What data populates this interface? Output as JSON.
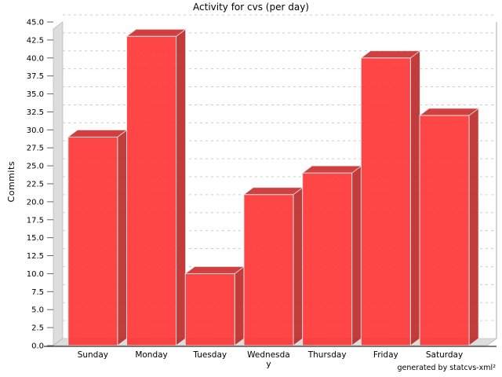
{
  "title": "Activity for cvs (per day)",
  "footer_credit": "generated by statcvs-xml²",
  "chart_data": {
    "type": "bar",
    "style": "3d",
    "title": "Activity for cvs (per day)",
    "categories": [
      "Sunday",
      "Monday",
      "Tuesday",
      "Wednesday",
      "Thursday",
      "Friday",
      "Saturday"
    ],
    "category_display": [
      [
        "Sunday"
      ],
      [
        "Monday"
      ],
      [
        "Tuesday"
      ],
      [
        "Wednesda",
        "y"
      ],
      [
        "Thursday"
      ],
      [
        "Friday"
      ],
      [
        "Saturday"
      ]
    ],
    "values": [
      29,
      43,
      10,
      21,
      24,
      40,
      32
    ],
    "xlabel": "",
    "ylabel": "Commits",
    "ylim": [
      0,
      45
    ],
    "ytick_step": 2.5,
    "grid": true,
    "legend": false,
    "colors": {
      "bar_front": "#fe2c2c",
      "bar_top": "#ca2626",
      "bar_side": "#ba2121",
      "bar_alpha": 0.88,
      "bar_edge": "#e0e0e0",
      "wall": "#dddddd",
      "wall_edge": "#aaaaaa",
      "gridline": "#cccccc",
      "axis_line": "#333333",
      "background": "#ffffff"
    }
  }
}
